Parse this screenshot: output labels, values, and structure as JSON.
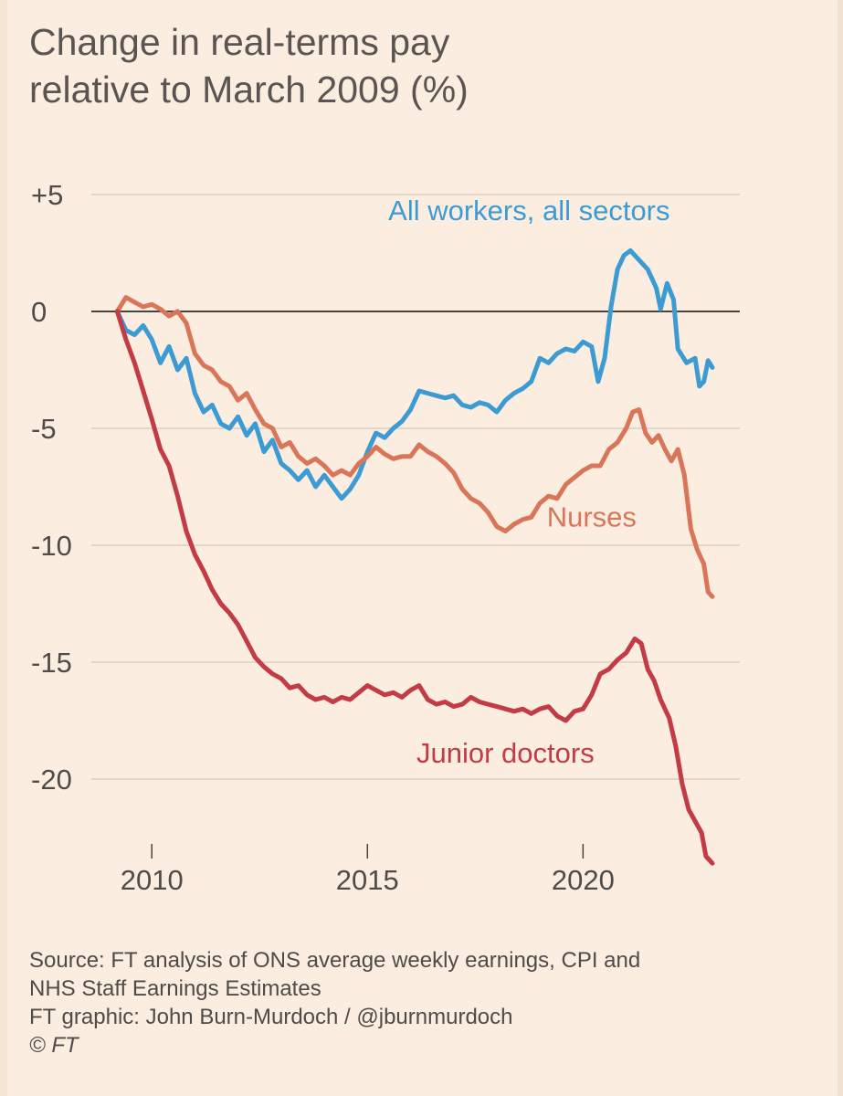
{
  "title_line1": "Change in real-terms pay",
  "title_line2": "relative to March 2009 (%)",
  "footer": {
    "source_line1": "Source: FT analysis of ONS average weekly earnings, CPI and",
    "source_line2": "NHS Staff Earnings Estimates",
    "credit": "FT graphic: John Burn-Murdoch / @jburnmurdoch",
    "copyright": "© FT"
  },
  "chart_data": {
    "type": "line",
    "title": "Change in real-terms pay relative to March 2009 (%)",
    "xlabel": "",
    "ylabel": "",
    "xlim": [
      2009,
      2023.5
    ],
    "ylim": [
      -23.5,
      5
    ],
    "yticks": [
      {
        "value": 5,
        "label": "+5"
      },
      {
        "value": 0,
        "label": "0"
      },
      {
        "value": -5,
        "label": "-5"
      },
      {
        "value": -10,
        "label": "-10"
      },
      {
        "value": -15,
        "label": "-15"
      },
      {
        "value": -20,
        "label": "-20"
      }
    ],
    "xticks": [
      {
        "value": 2010,
        "label": "2010"
      },
      {
        "value": 2015,
        "label": "2015"
      },
      {
        "value": 2020,
        "label": "2020"
      }
    ],
    "grid": true,
    "series": [
      {
        "name": "All workers, all sectors",
        "color": "#3d9bd4",
        "points": [
          [
            2009.2,
            0
          ],
          [
            2009.4,
            -0.8
          ],
          [
            2009.6,
            -1.0
          ],
          [
            2009.8,
            -0.6
          ],
          [
            2010.0,
            -1.2
          ],
          [
            2010.2,
            -2.2
          ],
          [
            2010.4,
            -1.5
          ],
          [
            2010.6,
            -2.5
          ],
          [
            2010.8,
            -2.0
          ],
          [
            2011.0,
            -3.5
          ],
          [
            2011.2,
            -4.3
          ],
          [
            2011.4,
            -4.0
          ],
          [
            2011.6,
            -4.8
          ],
          [
            2011.8,
            -5.0
          ],
          [
            2012.0,
            -4.5
          ],
          [
            2012.2,
            -5.3
          ],
          [
            2012.4,
            -4.8
          ],
          [
            2012.6,
            -6.0
          ],
          [
            2012.8,
            -5.5
          ],
          [
            2013.0,
            -6.5
          ],
          [
            2013.2,
            -6.8
          ],
          [
            2013.4,
            -7.2
          ],
          [
            2013.6,
            -6.8
          ],
          [
            2013.8,
            -7.5
          ],
          [
            2014.0,
            -7.0
          ],
          [
            2014.2,
            -7.5
          ],
          [
            2014.4,
            -8.0
          ],
          [
            2014.6,
            -7.6
          ],
          [
            2014.8,
            -7.0
          ],
          [
            2015.0,
            -6.0
          ],
          [
            2015.2,
            -5.2
          ],
          [
            2015.4,
            -5.4
          ],
          [
            2015.6,
            -5.0
          ],
          [
            2015.8,
            -4.7
          ],
          [
            2016.0,
            -4.2
          ],
          [
            2016.2,
            -3.4
          ],
          [
            2016.4,
            -3.5
          ],
          [
            2016.6,
            -3.6
          ],
          [
            2016.8,
            -3.7
          ],
          [
            2017.0,
            -3.6
          ],
          [
            2017.2,
            -4.0
          ],
          [
            2017.4,
            -4.1
          ],
          [
            2017.6,
            -3.9
          ],
          [
            2017.8,
            -4.0
          ],
          [
            2018.0,
            -4.3
          ],
          [
            2018.2,
            -3.8
          ],
          [
            2018.4,
            -3.5
          ],
          [
            2018.6,
            -3.3
          ],
          [
            2018.8,
            -3.0
          ],
          [
            2019.0,
            -2.0
          ],
          [
            2019.2,
            -2.2
          ],
          [
            2019.4,
            -1.8
          ],
          [
            2019.6,
            -1.6
          ],
          [
            2019.8,
            -1.7
          ],
          [
            2020.0,
            -1.3
          ],
          [
            2020.2,
            -1.5
          ],
          [
            2020.35,
            -3.0
          ],
          [
            2020.5,
            -2.0
          ],
          [
            2020.65,
            0.2
          ],
          [
            2020.8,
            1.8
          ],
          [
            2020.95,
            2.4
          ],
          [
            2021.1,
            2.6
          ],
          [
            2021.3,
            2.2
          ],
          [
            2021.5,
            1.8
          ],
          [
            2021.7,
            1.0
          ],
          [
            2021.8,
            0.1
          ],
          [
            2021.95,
            1.2
          ],
          [
            2022.1,
            0.5
          ],
          [
            2022.2,
            -1.6
          ],
          [
            2022.4,
            -2.2
          ],
          [
            2022.6,
            -2.0
          ],
          [
            2022.7,
            -3.2
          ],
          [
            2022.8,
            -3.0
          ],
          [
            2022.9,
            -2.1
          ],
          [
            2023.0,
            -2.4
          ]
        ]
      },
      {
        "name": "Nurses",
        "color": "#d97558",
        "points": [
          [
            2009.2,
            0
          ],
          [
            2009.4,
            0.6
          ],
          [
            2009.6,
            0.4
          ],
          [
            2009.8,
            0.2
          ],
          [
            2010.0,
            0.3
          ],
          [
            2010.2,
            0.1
          ],
          [
            2010.4,
            -0.2
          ],
          [
            2010.6,
            0.0
          ],
          [
            2010.8,
            -0.5
          ],
          [
            2011.0,
            -1.8
          ],
          [
            2011.2,
            -2.3
          ],
          [
            2011.4,
            -2.5
          ],
          [
            2011.6,
            -3.0
          ],
          [
            2011.8,
            -3.2
          ],
          [
            2012.0,
            -3.8
          ],
          [
            2012.2,
            -3.5
          ],
          [
            2012.4,
            -4.2
          ],
          [
            2012.6,
            -4.8
          ],
          [
            2012.8,
            -5.0
          ],
          [
            2013.0,
            -5.8
          ],
          [
            2013.2,
            -5.6
          ],
          [
            2013.4,
            -6.2
          ],
          [
            2013.6,
            -6.5
          ],
          [
            2013.8,
            -6.3
          ],
          [
            2014.0,
            -6.6
          ],
          [
            2014.2,
            -7.0
          ],
          [
            2014.4,
            -6.8
          ],
          [
            2014.6,
            -7.0
          ],
          [
            2014.8,
            -6.5
          ],
          [
            2015.0,
            -6.2
          ],
          [
            2015.2,
            -5.8
          ],
          [
            2015.4,
            -6.1
          ],
          [
            2015.6,
            -6.3
          ],
          [
            2015.8,
            -6.2
          ],
          [
            2016.0,
            -6.2
          ],
          [
            2016.2,
            -5.7
          ],
          [
            2016.4,
            -6.0
          ],
          [
            2016.6,
            -6.2
          ],
          [
            2016.8,
            -6.5
          ],
          [
            2017.0,
            -6.9
          ],
          [
            2017.2,
            -7.6
          ],
          [
            2017.4,
            -8.0
          ],
          [
            2017.6,
            -8.2
          ],
          [
            2017.8,
            -8.6
          ],
          [
            2018.0,
            -9.2
          ],
          [
            2018.2,
            -9.4
          ],
          [
            2018.4,
            -9.1
          ],
          [
            2018.6,
            -8.9
          ],
          [
            2018.8,
            -8.8
          ],
          [
            2019.0,
            -8.2
          ],
          [
            2019.2,
            -7.9
          ],
          [
            2019.4,
            -8.0
          ],
          [
            2019.6,
            -7.4
          ],
          [
            2019.8,
            -7.1
          ],
          [
            2020.0,
            -6.8
          ],
          [
            2020.2,
            -6.6
          ],
          [
            2020.4,
            -6.6
          ],
          [
            2020.6,
            -5.9
          ],
          [
            2020.8,
            -5.6
          ],
          [
            2021.0,
            -5.0
          ],
          [
            2021.15,
            -4.3
          ],
          [
            2021.3,
            -4.2
          ],
          [
            2021.45,
            -5.2
          ],
          [
            2021.6,
            -5.6
          ],
          [
            2021.75,
            -5.3
          ],
          [
            2021.9,
            -5.9
          ],
          [
            2022.05,
            -6.4
          ],
          [
            2022.2,
            -5.9
          ],
          [
            2022.35,
            -7.0
          ],
          [
            2022.5,
            -9.3
          ],
          [
            2022.65,
            -10.2
          ],
          [
            2022.8,
            -10.8
          ],
          [
            2022.9,
            -12.0
          ],
          [
            2023.0,
            -12.2
          ]
        ]
      },
      {
        "name": "Junior doctors",
        "color": "#c23b45",
        "points": [
          [
            2009.2,
            0
          ],
          [
            2009.4,
            -1.2
          ],
          [
            2009.6,
            -2.2
          ],
          [
            2009.8,
            -3.4
          ],
          [
            2010.0,
            -4.6
          ],
          [
            2010.2,
            -5.9
          ],
          [
            2010.4,
            -6.6
          ],
          [
            2010.6,
            -7.9
          ],
          [
            2010.8,
            -9.4
          ],
          [
            2011.0,
            -10.4
          ],
          [
            2011.2,
            -11.1
          ],
          [
            2011.4,
            -11.9
          ],
          [
            2011.6,
            -12.5
          ],
          [
            2011.8,
            -12.9
          ],
          [
            2012.0,
            -13.4
          ],
          [
            2012.2,
            -14.1
          ],
          [
            2012.4,
            -14.8
          ],
          [
            2012.6,
            -15.2
          ],
          [
            2012.8,
            -15.5
          ],
          [
            2013.0,
            -15.7
          ],
          [
            2013.2,
            -16.1
          ],
          [
            2013.4,
            -16.0
          ],
          [
            2013.6,
            -16.4
          ],
          [
            2013.8,
            -16.6
          ],
          [
            2014.0,
            -16.5
          ],
          [
            2014.2,
            -16.7
          ],
          [
            2014.4,
            -16.5
          ],
          [
            2014.6,
            -16.6
          ],
          [
            2014.8,
            -16.3
          ],
          [
            2015.0,
            -16.0
          ],
          [
            2015.2,
            -16.2
          ],
          [
            2015.4,
            -16.4
          ],
          [
            2015.6,
            -16.3
          ],
          [
            2015.8,
            -16.5
          ],
          [
            2016.0,
            -16.2
          ],
          [
            2016.2,
            -16.0
          ],
          [
            2016.4,
            -16.6
          ],
          [
            2016.6,
            -16.8
          ],
          [
            2016.8,
            -16.7
          ],
          [
            2017.0,
            -16.9
          ],
          [
            2017.2,
            -16.8
          ],
          [
            2017.4,
            -16.5
          ],
          [
            2017.6,
            -16.7
          ],
          [
            2017.8,
            -16.8
          ],
          [
            2018.0,
            -16.9
          ],
          [
            2018.2,
            -17.0
          ],
          [
            2018.4,
            -17.1
          ],
          [
            2018.6,
            -17.0
          ],
          [
            2018.8,
            -17.2
          ],
          [
            2019.0,
            -17.0
          ],
          [
            2019.2,
            -16.9
          ],
          [
            2019.4,
            -17.3
          ],
          [
            2019.6,
            -17.5
          ],
          [
            2019.8,
            -17.1
          ],
          [
            2020.0,
            -17.0
          ],
          [
            2020.2,
            -16.4
          ],
          [
            2020.4,
            -15.5
          ],
          [
            2020.6,
            -15.3
          ],
          [
            2020.8,
            -14.9
          ],
          [
            2021.0,
            -14.6
          ],
          [
            2021.2,
            -14.0
          ],
          [
            2021.35,
            -14.2
          ],
          [
            2021.5,
            -15.3
          ],
          [
            2021.65,
            -15.8
          ],
          [
            2021.8,
            -16.6
          ],
          [
            2022.0,
            -17.4
          ],
          [
            2022.15,
            -18.6
          ],
          [
            2022.3,
            -20.2
          ],
          [
            2022.45,
            -21.3
          ],
          [
            2022.6,
            -21.8
          ],
          [
            2022.75,
            -22.3
          ],
          [
            2022.85,
            -23.3
          ],
          [
            2023.0,
            -23.6
          ]
        ]
      }
    ],
    "annotations": [
      {
        "series": 0,
        "text": "All workers, all sectors",
        "x": 2018.75,
        "y": 3.9
      },
      {
        "series": 1,
        "text": "Nurses",
        "x": 2020.2,
        "y": -9.2
      },
      {
        "series": 2,
        "text": "Junior doctors",
        "x": 2018.2,
        "y": -19.3
      }
    ]
  }
}
